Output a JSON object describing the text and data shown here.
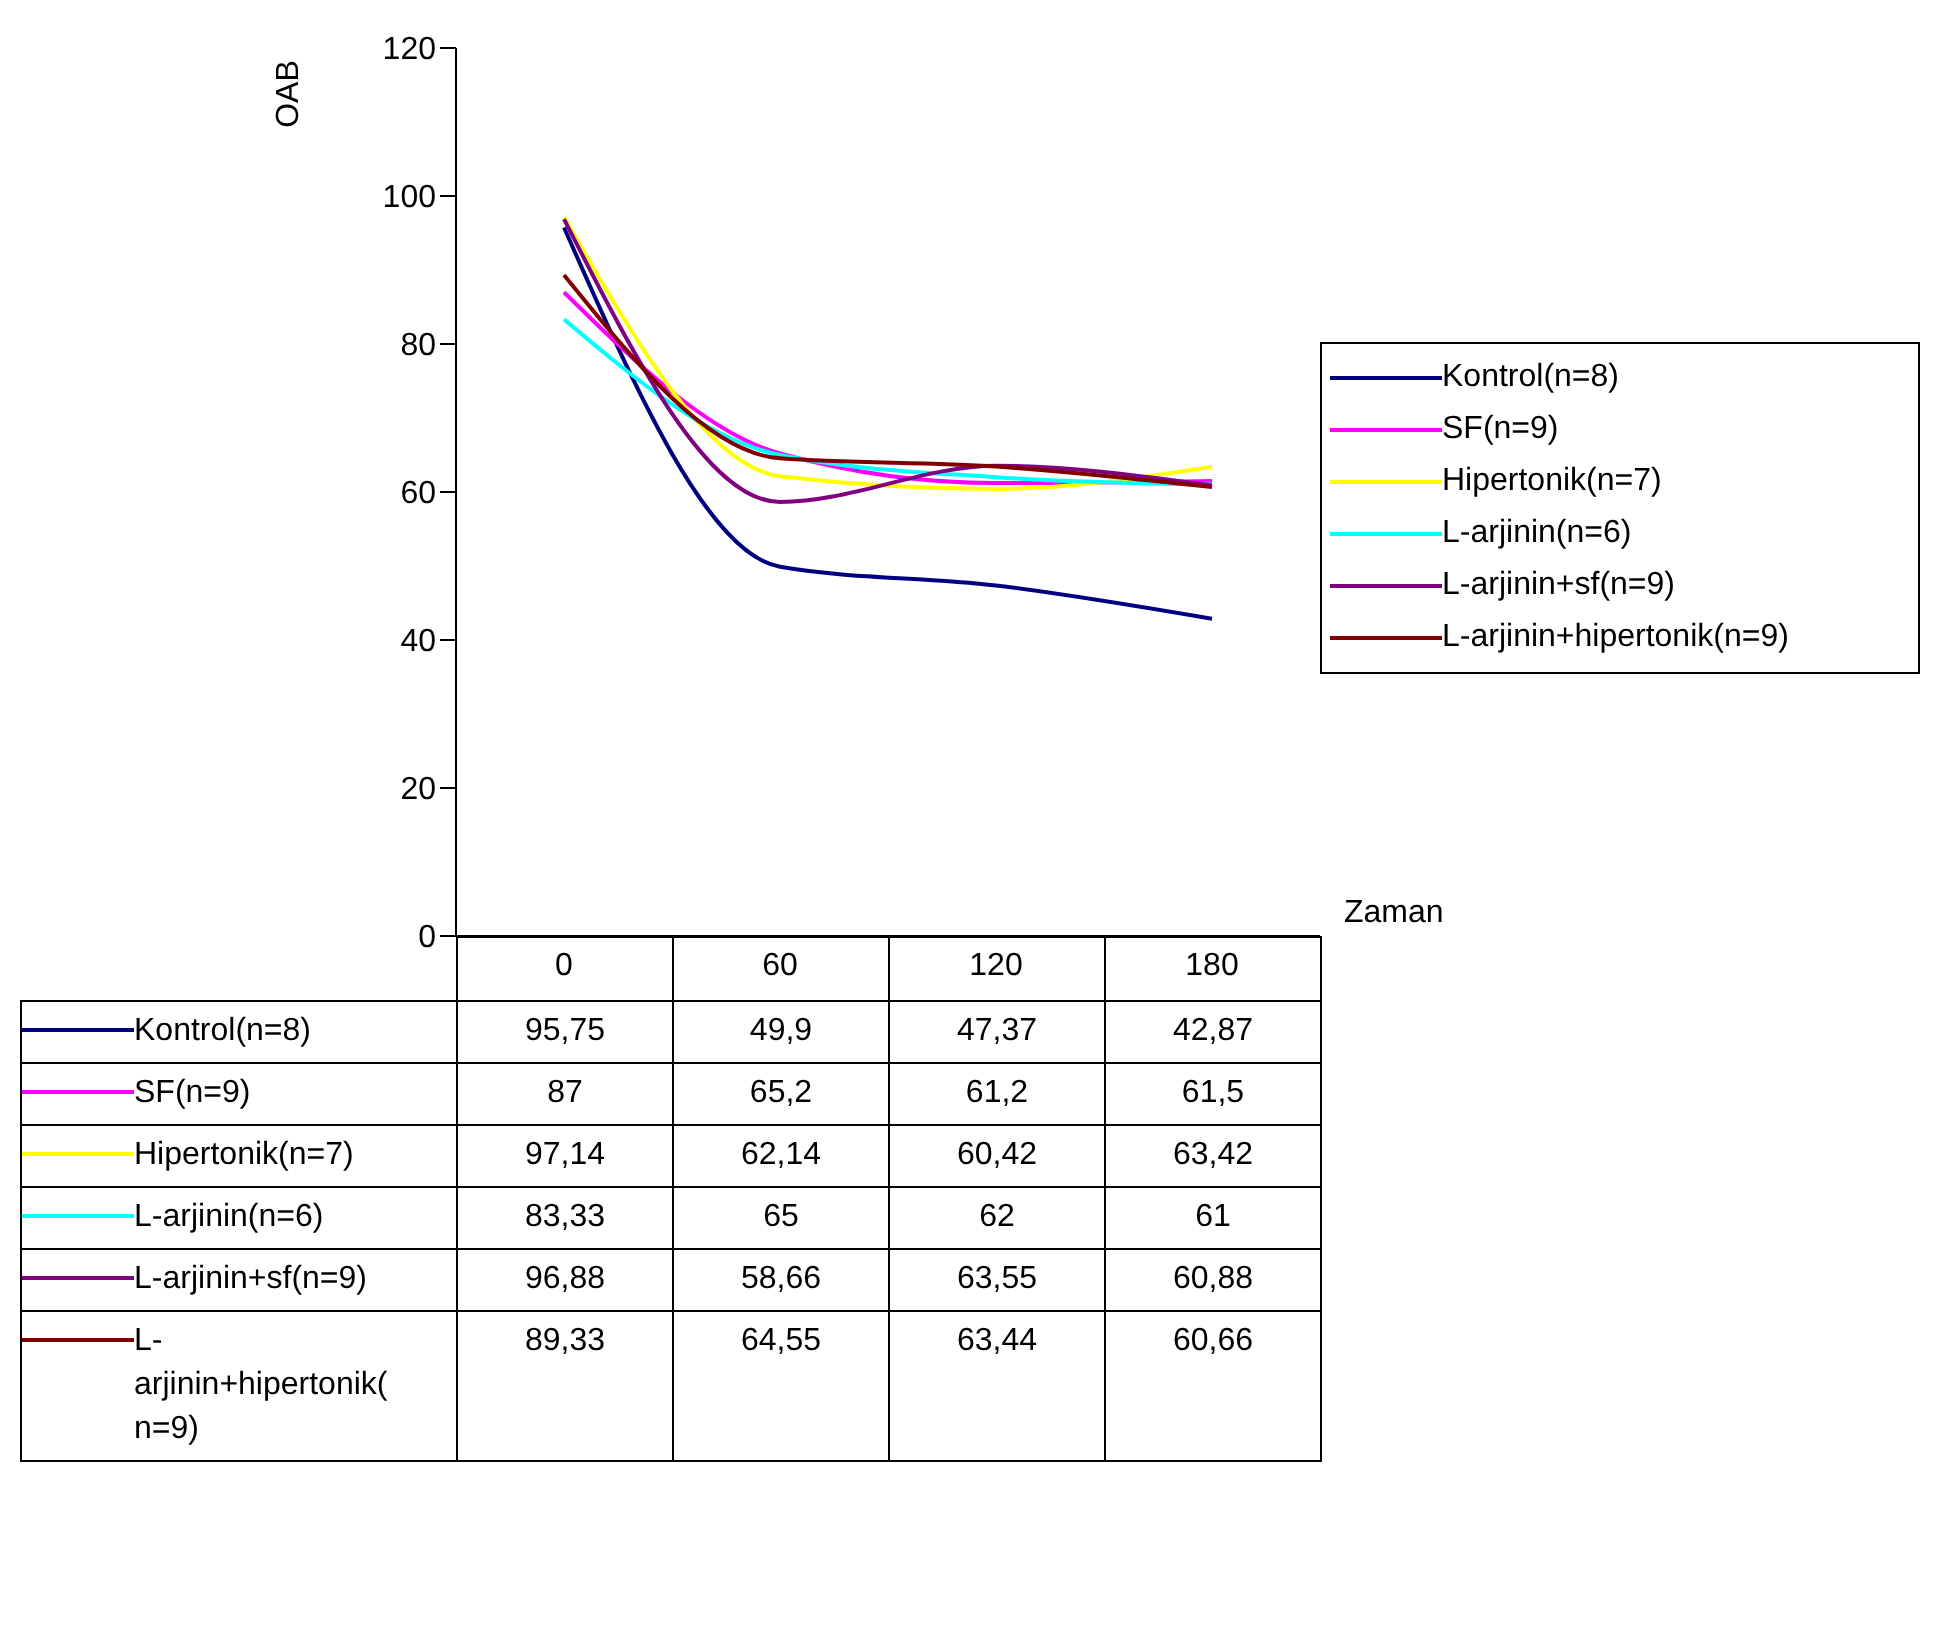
{
  "chart_data": {
    "type": "line",
    "ylabel": "OAB",
    "xlabel": "Zaman",
    "categories": [
      "0",
      "60",
      "120",
      "180"
    ],
    "ylim": [
      0,
      120
    ],
    "yticks": [
      0,
      20,
      40,
      60,
      80,
      100,
      120
    ],
    "legend": "right",
    "series": [
      {
        "name": "Kontrol(n=8)",
        "color": "#000080",
        "values": [
          95.75,
          49.9,
          47.37,
          42.87
        ],
        "value_labels": [
          "95,75",
          "49,9",
          "47,37",
          "42,87"
        ]
      },
      {
        "name": "SF(n=9)",
        "color": "#ff00ff",
        "values": [
          87,
          65.2,
          61.2,
          61.5
        ],
        "value_labels": [
          "87",
          "65,2",
          "61,2",
          "61,5"
        ]
      },
      {
        "name": "Hipertonik(n=7)",
        "color": "#ffff00",
        "values": [
          97.14,
          62.14,
          60.42,
          63.42
        ],
        "value_labels": [
          "97,14",
          "62,14",
          "60,42",
          "63,42"
        ]
      },
      {
        "name": "L-arjinin(n=6)",
        "color": "#00ffff",
        "values": [
          83.33,
          65,
          62,
          61
        ],
        "value_labels": [
          "83,33",
          "65",
          "62",
          "61"
        ]
      },
      {
        "name": "L-arjinin+sf(n=9)",
        "color": "#800080",
        "values": [
          96.88,
          58.66,
          63.55,
          60.88
        ],
        "value_labels": [
          "96,88",
          "58,66",
          "63,55",
          "60,88"
        ]
      },
      {
        "name": "L-arjinin+hipertonik(n=9)",
        "color": "#800000",
        "values": [
          89.33,
          64.55,
          63.44,
          60.66
        ],
        "value_labels": [
          "89,33",
          "64,55",
          "63,44",
          "60,66"
        ]
      }
    ]
  }
}
